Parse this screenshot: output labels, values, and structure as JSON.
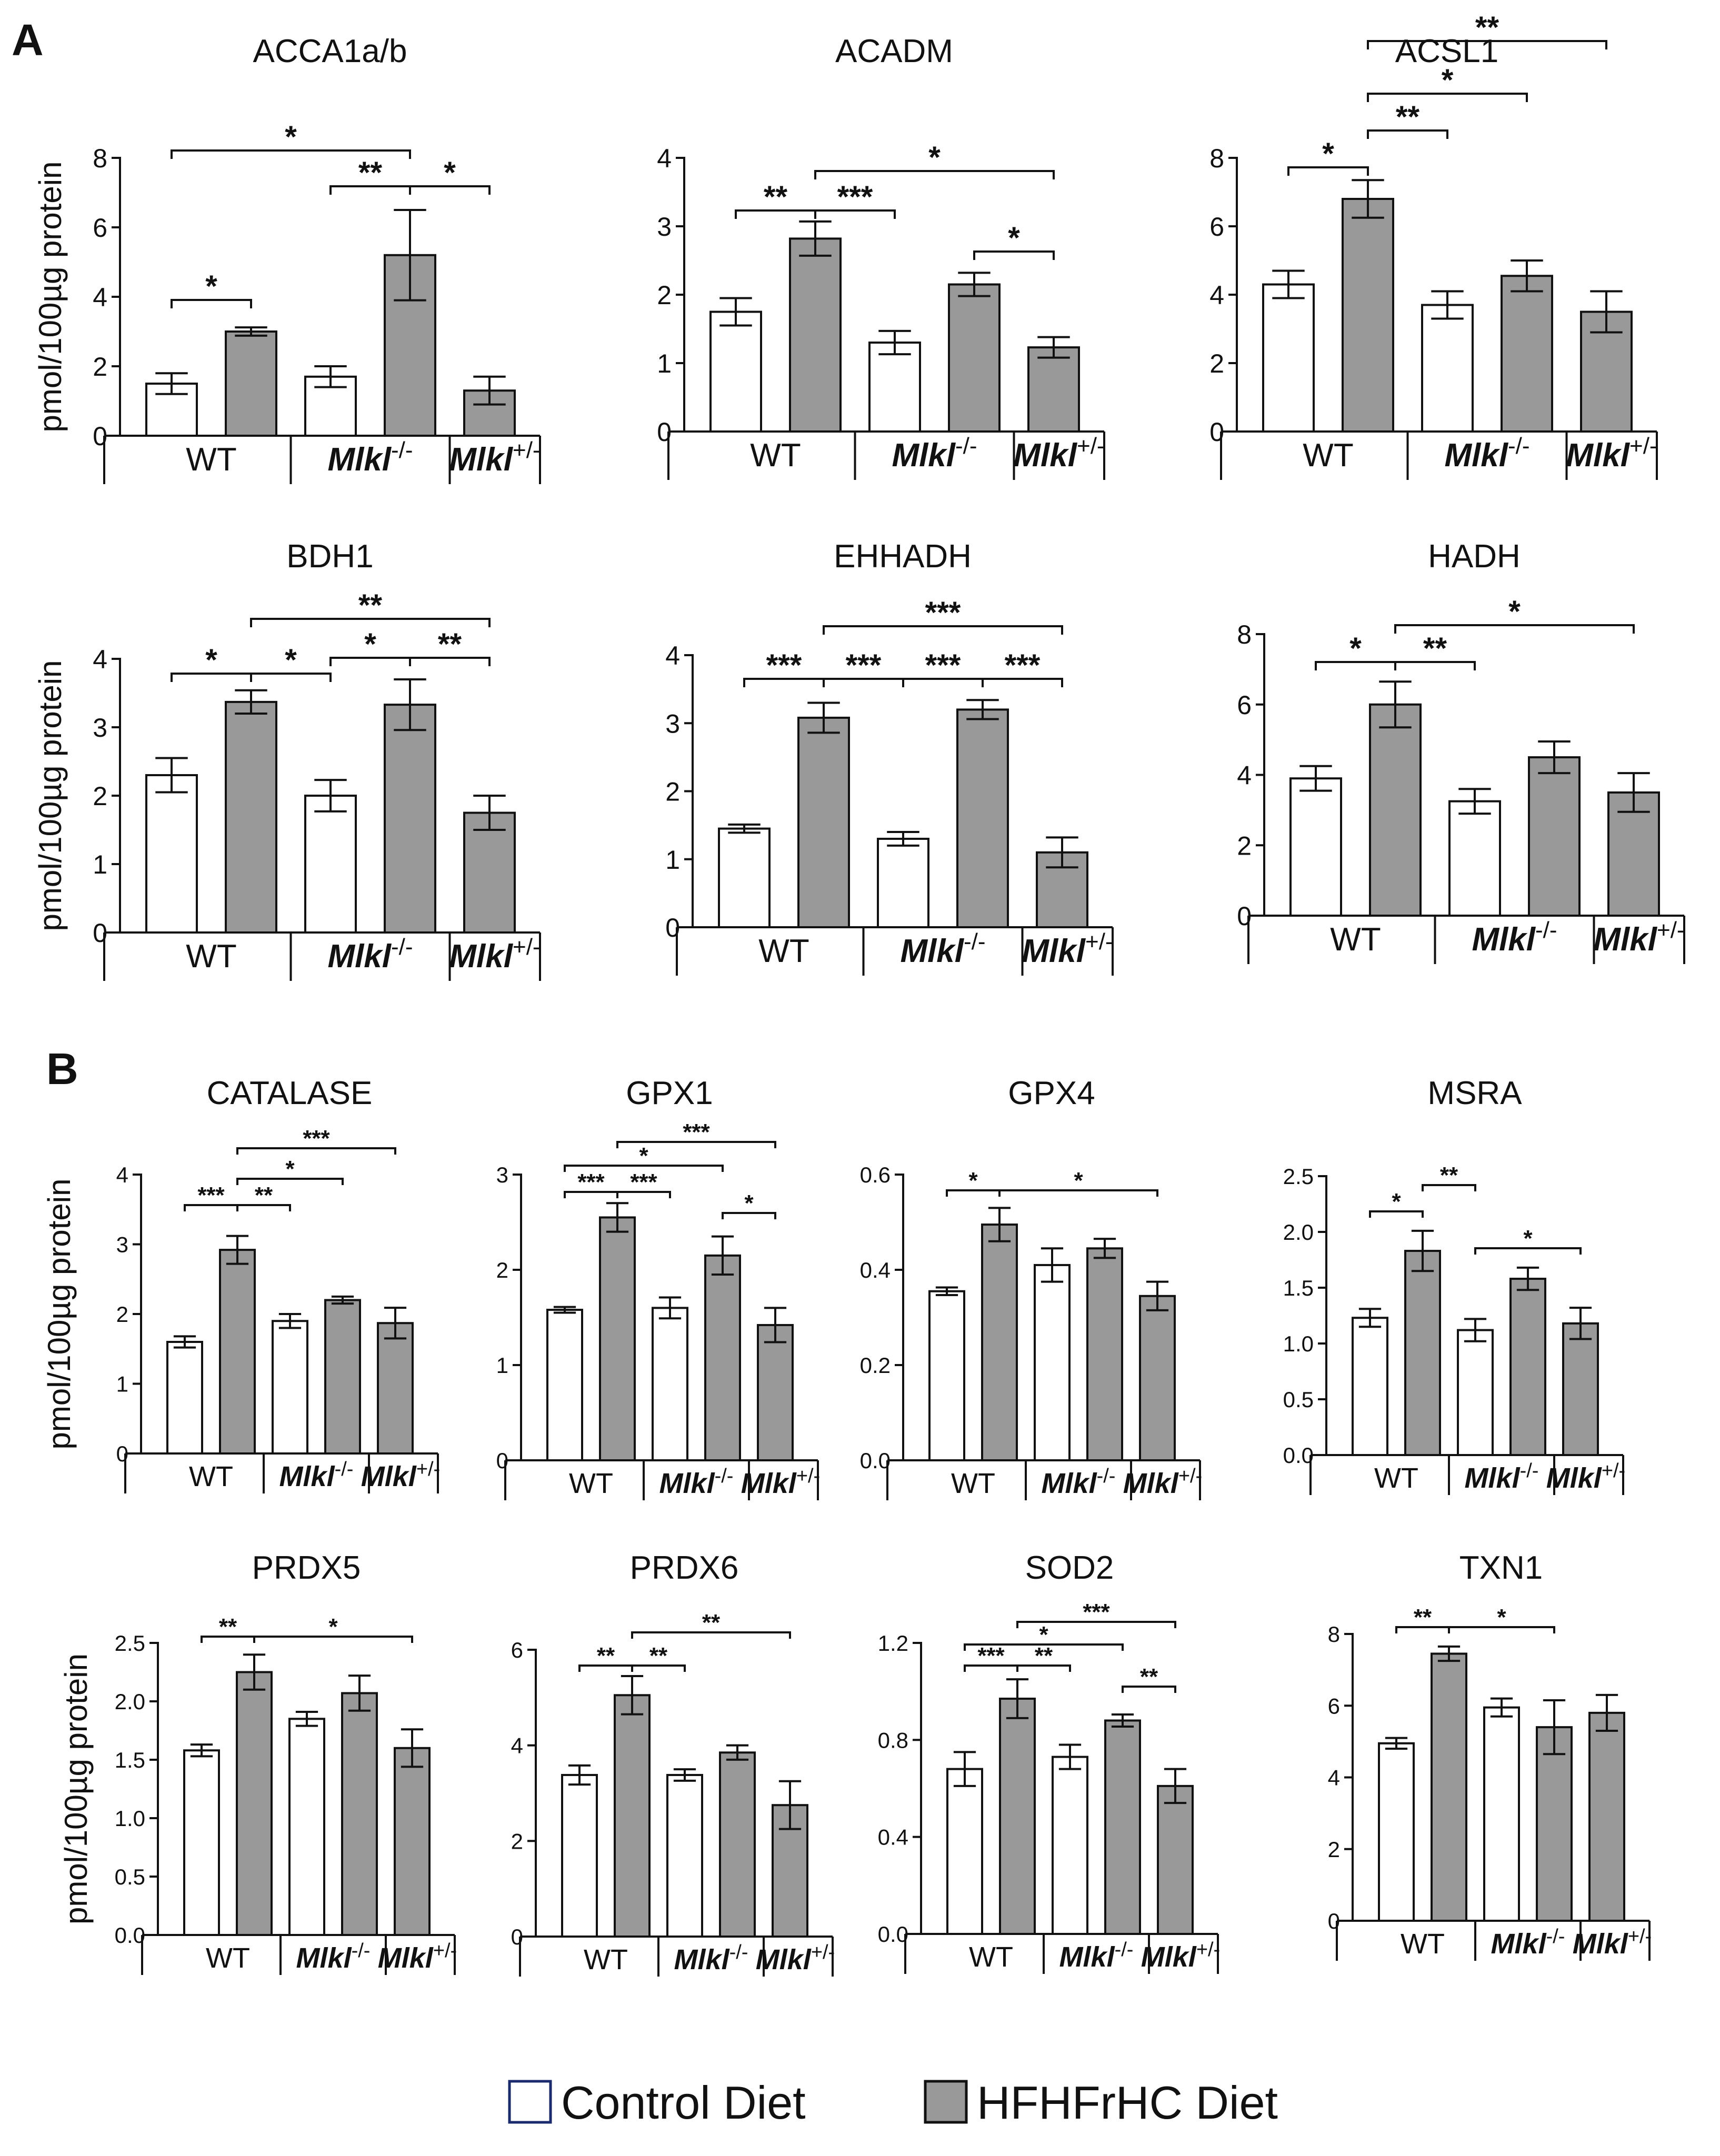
{
  "panels": {
    "a": "A",
    "b": "B"
  },
  "colors": {
    "control": "#ffffff",
    "hfhfrhc": "#999999",
    "axis": "#111111"
  },
  "ylabel": "pmol/100µg protein",
  "group_labels": [
    "WT",
    "Mlkl-/-",
    "Mlkl+/-"
  ],
  "legend": {
    "control": "Control Diet",
    "hfhfrhc": "HFHFrHC Diet"
  },
  "chart_data": [
    {
      "type": "bar",
      "panel": "A",
      "title": "ACCA1a/b",
      "ylabel": "pmol/100µg protein",
      "ylim": [
        0,
        8
      ],
      "yticks": [
        "0",
        "2",
        "4",
        "6",
        "8"
      ],
      "groups": [
        "WT",
        "Mlkl-/-",
        "Mlkl+/-"
      ],
      "series": [
        "Control Diet",
        "HFHFrHC Diet",
        "Control Diet",
        "HFHFrHC Diet",
        "HFHFrHC Diet"
      ],
      "values": [
        1.5,
        3.0,
        1.7,
        5.2,
        1.3
      ],
      "errors": [
        0.3,
        0.12,
        0.3,
        1.3,
        0.4
      ],
      "significance": [
        {
          "from": 0,
          "to": 3,
          "label": "*"
        },
        {
          "from": 2,
          "to": 3,
          "label": "**"
        },
        {
          "from": 3,
          "to": 4,
          "label": "*"
        },
        {
          "from": 0,
          "to": 1,
          "label": "*"
        }
      ]
    },
    {
      "type": "bar",
      "panel": "A",
      "title": "ACADM",
      "ylabel": "",
      "ylim": [
        0,
        4
      ],
      "yticks": [
        "0",
        "1",
        "2",
        "3",
        "4"
      ],
      "groups": [
        "WT",
        "Mlkl-/-",
        "Mlkl+/-"
      ],
      "series": [
        "Control Diet",
        "HFHFrHC Diet",
        "Control Diet",
        "HFHFrHC Diet",
        "HFHFrHC Diet"
      ],
      "values": [
        1.75,
        2.82,
        1.3,
        2.15,
        1.23
      ],
      "errors": [
        0.2,
        0.25,
        0.17,
        0.17,
        0.15
      ],
      "significance": [
        {
          "from": 0,
          "to": 1,
          "label": "**"
        },
        {
          "from": 1,
          "to": 2,
          "label": "***"
        },
        {
          "from": 1,
          "to": 4,
          "label": "*"
        },
        {
          "from": 3,
          "to": 4,
          "label": "*"
        }
      ]
    },
    {
      "type": "bar",
      "panel": "A",
      "title": "ACSL1",
      "ylabel": "",
      "ylim": [
        0,
        8
      ],
      "yticks": [
        "0",
        "2",
        "4",
        "6",
        "8"
      ],
      "groups": [
        "WT",
        "Mlkl-/-",
        "Mlkl+/-"
      ],
      "series": [
        "Control Diet",
        "HFHFrHC Diet",
        "Control Diet",
        "HFHFrHC Diet",
        "HFHFrHC Diet"
      ],
      "values": [
        4.3,
        6.8,
        3.7,
        4.55,
        3.5
      ],
      "errors": [
        0.4,
        0.55,
        0.4,
        0.45,
        0.6
      ],
      "significance": [
        {
          "from": 0,
          "to": 1,
          "label": "*"
        },
        {
          "from": 1,
          "to": 2,
          "label": "**"
        },
        {
          "from": 1,
          "to": 3,
          "label": "*"
        },
        {
          "from": 1,
          "to": 4,
          "label": "**"
        }
      ]
    },
    {
      "type": "bar",
      "panel": "A",
      "title": "BDH1",
      "ylabel": "pmol/100µg protein",
      "ylim": [
        0,
        4
      ],
      "yticks": [
        "0",
        "1",
        "2",
        "3",
        "4"
      ],
      "groups": [
        "WT",
        "Mlkl-/-",
        "Mlkl+/-"
      ],
      "series": [
        "Control Diet",
        "HFHFrHC Diet",
        "Control Diet",
        "HFHFrHC Diet",
        "HFHFrHC Diet"
      ],
      "values": [
        2.3,
        3.37,
        2.0,
        3.33,
        1.75
      ],
      "errors": [
        0.25,
        0.17,
        0.23,
        0.37,
        0.25
      ],
      "significance": [
        {
          "from": 0,
          "to": 1,
          "label": "*"
        },
        {
          "from": 1,
          "to": 2,
          "label": "*"
        },
        {
          "from": 2,
          "to": 3,
          "label": "*"
        },
        {
          "from": 3,
          "to": 4,
          "label": "**"
        },
        {
          "from": 1,
          "to": 4,
          "label": "**"
        }
      ]
    },
    {
      "type": "bar",
      "panel": "A",
      "title": "EHHADH",
      "ylabel": "",
      "ylim": [
        0,
        4
      ],
      "yticks": [
        "0",
        "1",
        "2",
        "3",
        "4"
      ],
      "groups": [
        "WT",
        "Mlkl-/-",
        "Mlkl+/-"
      ],
      "series": [
        "Control Diet",
        "HFHFrHC Diet",
        "Control Diet",
        "HFHFrHC Diet",
        "HFHFrHC Diet"
      ],
      "values": [
        1.45,
        3.08,
        1.3,
        3.2,
        1.1
      ],
      "errors": [
        0.06,
        0.22,
        0.1,
        0.14,
        0.22
      ],
      "significance": [
        {
          "from": 0,
          "to": 1,
          "label": "***"
        },
        {
          "from": 1,
          "to": 2,
          "label": "***"
        },
        {
          "from": 2,
          "to": 3,
          "label": "***"
        },
        {
          "from": 3,
          "to": 4,
          "label": "***"
        },
        {
          "from": 1,
          "to": 4,
          "label": "***"
        }
      ]
    },
    {
      "type": "bar",
      "panel": "A",
      "title": "HADH",
      "ylabel": "",
      "ylim": [
        0,
        8
      ],
      "yticks": [
        "0",
        "2",
        "4",
        "6",
        "8"
      ],
      "groups": [
        "WT",
        "Mlkl-/-",
        "Mlkl+/-"
      ],
      "series": [
        "Control Diet",
        "HFHFrHC Diet",
        "Control Diet",
        "HFHFrHC Diet",
        "HFHFrHC Diet"
      ],
      "values": [
        3.9,
        6.0,
        3.25,
        4.5,
        3.5
      ],
      "errors": [
        0.35,
        0.65,
        0.35,
        0.45,
        0.55
      ],
      "significance": [
        {
          "from": 0,
          "to": 1,
          "label": "*"
        },
        {
          "from": 1,
          "to": 2,
          "label": "**"
        },
        {
          "from": 1,
          "to": 4,
          "label": "*"
        }
      ]
    },
    {
      "type": "bar",
      "panel": "B",
      "title": "CATALASE",
      "ylabel": "pmol/100µg protein",
      "ylim": [
        0,
        4
      ],
      "yticks": [
        "0",
        "1",
        "2",
        "3",
        "4"
      ],
      "groups": [
        "WT",
        "Mlkl-/-",
        "Mlkl+/-"
      ],
      "series": [
        "Control Diet",
        "HFHFrHC Diet",
        "Control Diet",
        "HFHFrHC Diet",
        "HFHFrHC Diet"
      ],
      "values": [
        1.6,
        2.92,
        1.9,
        2.2,
        1.87
      ],
      "errors": [
        0.08,
        0.2,
        0.1,
        0.05,
        0.22
      ],
      "significance": [
        {
          "from": 1,
          "to": 4,
          "label": "***"
        },
        {
          "from": 1,
          "to": 3,
          "label": "*"
        },
        {
          "from": 0,
          "to": 1,
          "label": "***"
        },
        {
          "from": 1,
          "to": 2,
          "label": "**"
        }
      ]
    },
    {
      "type": "bar",
      "panel": "B",
      "title": "GPX1",
      "ylabel": "",
      "ylim": [
        0,
        3
      ],
      "yticks": [
        "0",
        "1",
        "2",
        "3"
      ],
      "groups": [
        "WT",
        "Mlkl-/-",
        "Mlkl+/-"
      ],
      "series": [
        "Control Diet",
        "HFHFrHC Diet",
        "Control Diet",
        "HFHFrHC Diet",
        "HFHFrHC Diet"
      ],
      "values": [
        1.58,
        2.55,
        1.6,
        2.15,
        1.42
      ],
      "errors": [
        0.03,
        0.15,
        0.11,
        0.2,
        0.18
      ],
      "significance": [
        {
          "from": 1,
          "to": 4,
          "label": "***"
        },
        {
          "from": 0,
          "to": 3,
          "label": "*"
        },
        {
          "from": 0,
          "to": 1,
          "label": "***"
        },
        {
          "from": 1,
          "to": 2,
          "label": "***"
        },
        {
          "from": 3,
          "to": 4,
          "label": "*"
        }
      ]
    },
    {
      "type": "bar",
      "panel": "B",
      "title": "GPX4",
      "ylabel": "",
      "ylim": [
        0,
        0.6
      ],
      "yticks": [
        "0.0",
        "0.2",
        "0.4",
        "0.6"
      ],
      "groups": [
        "WT",
        "Mlkl-/-",
        "Mlkl+/-"
      ],
      "series": [
        "Control Diet",
        "HFHFrHC Diet",
        "Control Diet",
        "HFHFrHC Diet",
        "HFHFrHC Diet"
      ],
      "values": [
        0.355,
        0.495,
        0.41,
        0.445,
        0.345
      ],
      "errors": [
        0.008,
        0.035,
        0.035,
        0.02,
        0.03
      ],
      "significance": [
        {
          "from": 0,
          "to": 1,
          "label": "*"
        },
        {
          "from": 1,
          "to": 4,
          "label": "*"
        }
      ]
    },
    {
      "type": "bar",
      "panel": "B",
      "title": "MSRA",
      "ylabel": "",
      "ylim": [
        0,
        2.5
      ],
      "yticks": [
        "0.0",
        "0.5",
        "1.0",
        "1.5",
        "2.0",
        "2.5"
      ],
      "groups": [
        "WT",
        "Mlkl-/-",
        "Mlkl+/-"
      ],
      "series": [
        "Control Diet",
        "HFHFrHC Diet",
        "Control Diet",
        "HFHFrHC Diet",
        "HFHFrHC Diet"
      ],
      "values": [
        1.23,
        1.83,
        1.12,
        1.58,
        1.18
      ],
      "errors": [
        0.08,
        0.18,
        0.1,
        0.1,
        0.14
      ],
      "significance": [
        {
          "from": 0,
          "to": 1,
          "label": "*"
        },
        {
          "from": 1,
          "to": 2,
          "label": "**"
        },
        {
          "from": 2,
          "to": 4,
          "label": "*"
        }
      ]
    },
    {
      "type": "bar",
      "panel": "B",
      "title": "PRDX5",
      "ylabel": "pmol/100µg protein",
      "ylim": [
        0,
        2.5
      ],
      "yticks": [
        "0.0",
        "0.5",
        "1.0",
        "1.5",
        "2.0",
        "2.5"
      ],
      "groups": [
        "WT",
        "Mlkl-/-",
        "Mlkl+/-"
      ],
      "series": [
        "Control Diet",
        "HFHFrHC Diet",
        "Control Diet",
        "HFHFrHC Diet",
        "HFHFrHC Diet"
      ],
      "values": [
        1.58,
        2.25,
        1.85,
        2.07,
        1.6
      ],
      "errors": [
        0.05,
        0.15,
        0.06,
        0.15,
        0.16
      ],
      "significance": [
        {
          "from": 0,
          "to": 1,
          "label": "**"
        },
        {
          "from": 1,
          "to": 4,
          "label": "*"
        }
      ]
    },
    {
      "type": "bar",
      "panel": "B",
      "title": "PRDX6",
      "ylabel": "",
      "ylim": [
        0,
        6
      ],
      "yticks": [
        "0",
        "2",
        "4",
        "6"
      ],
      "groups": [
        "WT",
        "Mlkl-/-",
        "Mlkl+/-"
      ],
      "series": [
        "Control Diet",
        "HFHFrHC Diet",
        "Control Diet",
        "HFHFrHC Diet",
        "HFHFrHC Diet"
      ],
      "values": [
        3.38,
        5.05,
        3.38,
        3.85,
        2.75
      ],
      "errors": [
        0.2,
        0.4,
        0.12,
        0.15,
        0.5
      ],
      "significance": [
        {
          "from": 0,
          "to": 1,
          "label": "**"
        },
        {
          "from": 1,
          "to": 2,
          "label": "**"
        },
        {
          "from": 1,
          "to": 4,
          "label": "**"
        }
      ]
    },
    {
      "type": "bar",
      "panel": "B",
      "title": "SOD2",
      "ylabel": "",
      "ylim": [
        0,
        1.2
      ],
      "yticks": [
        "0.0",
        "0.4",
        "0.8",
        "1.2"
      ],
      "groups": [
        "WT",
        "Mlkl-/-",
        "Mlkl+/-"
      ],
      "series": [
        "Control Diet",
        "HFHFrHC Diet",
        "Control Diet",
        "HFHFrHC Diet",
        "HFHFrHC Diet"
      ],
      "values": [
        0.68,
        0.97,
        0.73,
        0.88,
        0.61
      ],
      "errors": [
        0.07,
        0.08,
        0.05,
        0.025,
        0.07
      ],
      "significance": [
        {
          "from": 1,
          "to": 4,
          "label": "***"
        },
        {
          "from": 0,
          "to": 3,
          "label": "*"
        },
        {
          "from": 0,
          "to": 1,
          "label": "***"
        },
        {
          "from": 1,
          "to": 2,
          "label": "**"
        },
        {
          "from": 3,
          "to": 4,
          "label": "**"
        }
      ]
    },
    {
      "type": "bar",
      "panel": "B",
      "title": "TXN1",
      "ylabel": "",
      "ylim": [
        0,
        8
      ],
      "yticks": [
        "0",
        "2",
        "4",
        "6",
        "8"
      ],
      "groups": [
        "WT",
        "Mlkl-/-",
        "Mlkl+/-"
      ],
      "series": [
        "Control Diet",
        "HFHFrHC Diet",
        "Control Diet",
        "HFHFrHC Diet",
        "HFHFrHC Diet"
      ],
      "values": [
        4.95,
        7.45,
        5.95,
        5.4,
        5.8
      ],
      "errors": [
        0.15,
        0.2,
        0.25,
        0.75,
        0.5
      ],
      "significance": [
        {
          "from": 0,
          "to": 1,
          "label": "**"
        },
        {
          "from": 1,
          "to": 3,
          "label": "*"
        }
      ]
    }
  ]
}
